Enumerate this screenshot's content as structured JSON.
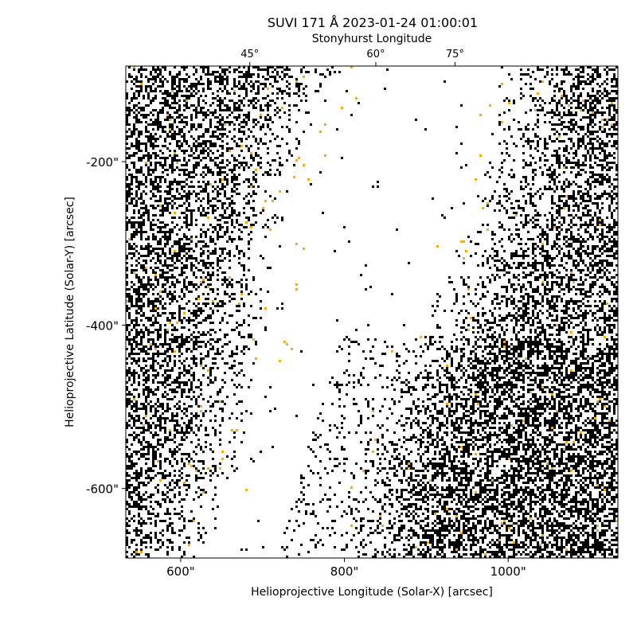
{
  "chart_data": {
    "type": "image",
    "title": "SUVI 171 Å 2023-01-24 01:00:01",
    "top_axis_label": "Stonyhurst Longitude",
    "xlabel": "Helioprojective Longitude (Solar-X) [arcsec]",
    "ylabel": "Helioprojective Latitude (Solar-Y) [arcsec]",
    "xlim": [
      533,
      1134
    ],
    "ylim": [
      -685,
      -83
    ],
    "xticks": [
      {
        "value": 600,
        "label": "600\""
      },
      {
        "value": 800,
        "label": "800\""
      },
      {
        "value": 1000,
        "label": "1000\""
      }
    ],
    "yticks": [
      {
        "value": -200,
        "label": "-200\""
      },
      {
        "value": -400,
        "label": "-400\""
      },
      {
        "value": -600,
        "label": "-600\""
      }
    ],
    "top_ticks": [
      {
        "value": 45,
        "label": "45°"
      },
      {
        "value": 60,
        "label": "60°"
      },
      {
        "value": 75,
        "label": "75°"
      }
    ]
  }
}
